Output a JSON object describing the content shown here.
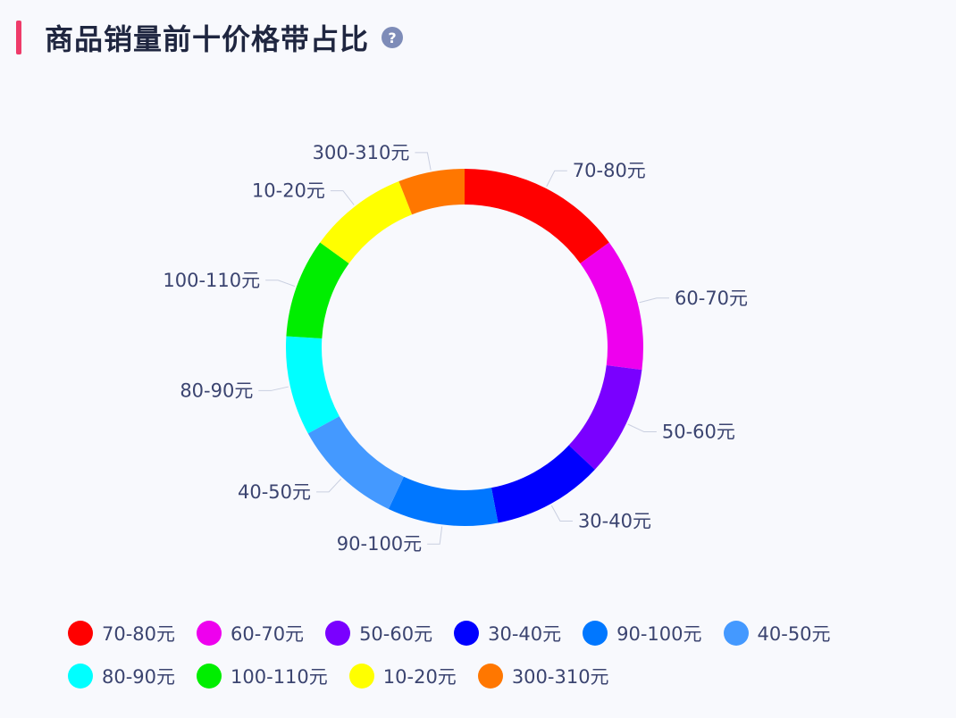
{
  "header": {
    "title": "商品销量前十价格带占比",
    "help_icon": "question-circle-icon",
    "help_glyph": "?"
  },
  "colors": {
    "accent": "#ef3b6a",
    "help_icon": "#7e8cb8",
    "label_text": "#3b4470",
    "leader_line": "#c9cfe0"
  },
  "chart_data": {
    "type": "pie",
    "variant": "donut",
    "title": "商品销量前十价格带占比",
    "legend_placement": "bottom",
    "slices": [
      {
        "label": "70-80元",
        "value": 15,
        "color": "#ff0000"
      },
      {
        "label": "60-70元",
        "value": 12,
        "color": "#ee00ee"
      },
      {
        "label": "50-60元",
        "value": 10,
        "color": "#7a00ff"
      },
      {
        "label": "30-40元",
        "value": 10,
        "color": "#0000ff"
      },
      {
        "label": "90-100元",
        "value": 10,
        "color": "#0077ff"
      },
      {
        "label": "40-50元",
        "value": 10,
        "color": "#4499ff"
      },
      {
        "label": "80-90元",
        "value": 9,
        "color": "#00ffff"
      },
      {
        "label": "100-110元",
        "value": 9,
        "color": "#00ee00"
      },
      {
        "label": "10-20元",
        "value": 9,
        "color": "#ffff00"
      },
      {
        "label": "300-310元",
        "value": 6,
        "color": "#ff7700"
      }
    ]
  }
}
